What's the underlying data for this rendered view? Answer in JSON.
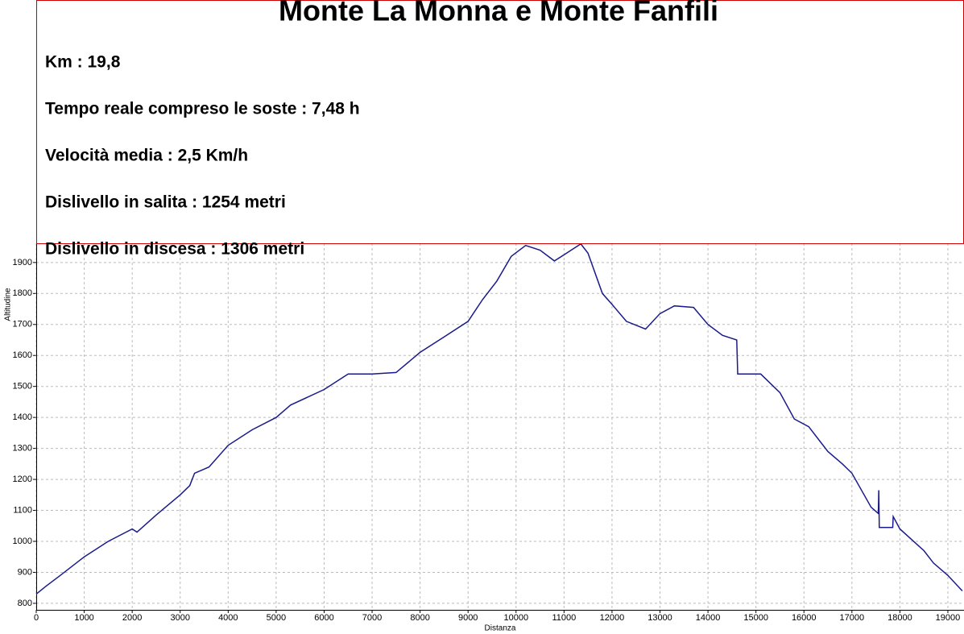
{
  "chart_data": {
    "type": "line",
    "title": "Monte La Monna e Monte Fanfili",
    "annotations": [
      "Km : 19,8",
      "Tempo reale compreso le soste : 7,48 h",
      "Velocità media : 2,5 Km/h",
      "Dislivello in salita : 1254 metri",
      "Dislivello in discesa : 1306 metri"
    ],
    "x_label": "Distanza",
    "y_label": "Altitudine",
    "x": [
      0,
      200,
      500,
      1000,
      1500,
      2000,
      2100,
      2500,
      3000,
      3200,
      3300,
      3600,
      4000,
      4500,
      5000,
      5300,
      6000,
      6500,
      7000,
      7500,
      8000,
      8500,
      9000,
      9300,
      9600,
      9900,
      10200,
      10500,
      10800,
      11000,
      11350,
      11500,
      11800,
      12000,
      12300,
      12700,
      13000,
      13300,
      13700,
      14000,
      14300,
      14600,
      14620,
      15100,
      15500,
      15800,
      16100,
      16500,
      16800,
      17000,
      17400,
      17550,
      17560,
      17570,
      17850,
      17860,
      18000,
      18500,
      18700,
      19000,
      19300
    ],
    "series": [
      {
        "name": "Altitudine",
        "color": "#1a1a8c",
        "values": [
          830,
          855,
          890,
          950,
          1000,
          1040,
          1030,
          1085,
          1150,
          1180,
          1220,
          1240,
          1310,
          1360,
          1400,
          1440,
          1490,
          1540,
          1540,
          1545,
          1610,
          1660,
          1710,
          1780,
          1840,
          1920,
          1955,
          1940,
          1905,
          1925,
          1960,
          1930,
          1800,
          1765,
          1710,
          1685,
          1735,
          1760,
          1755,
          1700,
          1665,
          1650,
          1540,
          1540,
          1480,
          1395,
          1370,
          1290,
          1250,
          1220,
          1110,
          1090,
          1165,
          1045,
          1045,
          1080,
          1040,
          970,
          930,
          890,
          840
        ]
      }
    ],
    "xlim": [
      0,
      19336
    ],
    "ylim": [
      779,
      1962
    ],
    "xticks": [
      0,
      1000,
      2000,
      3000,
      4000,
      5000,
      6000,
      7000,
      8000,
      9000,
      10000,
      11000,
      12000,
      13000,
      14000,
      15000,
      16000,
      17000,
      18000,
      19000
    ],
    "yticks": [
      800,
      900,
      1000,
      1100,
      1200,
      1300,
      1400,
      1500,
      1600,
      1700,
      1800,
      1900
    ],
    "grid": true
  }
}
